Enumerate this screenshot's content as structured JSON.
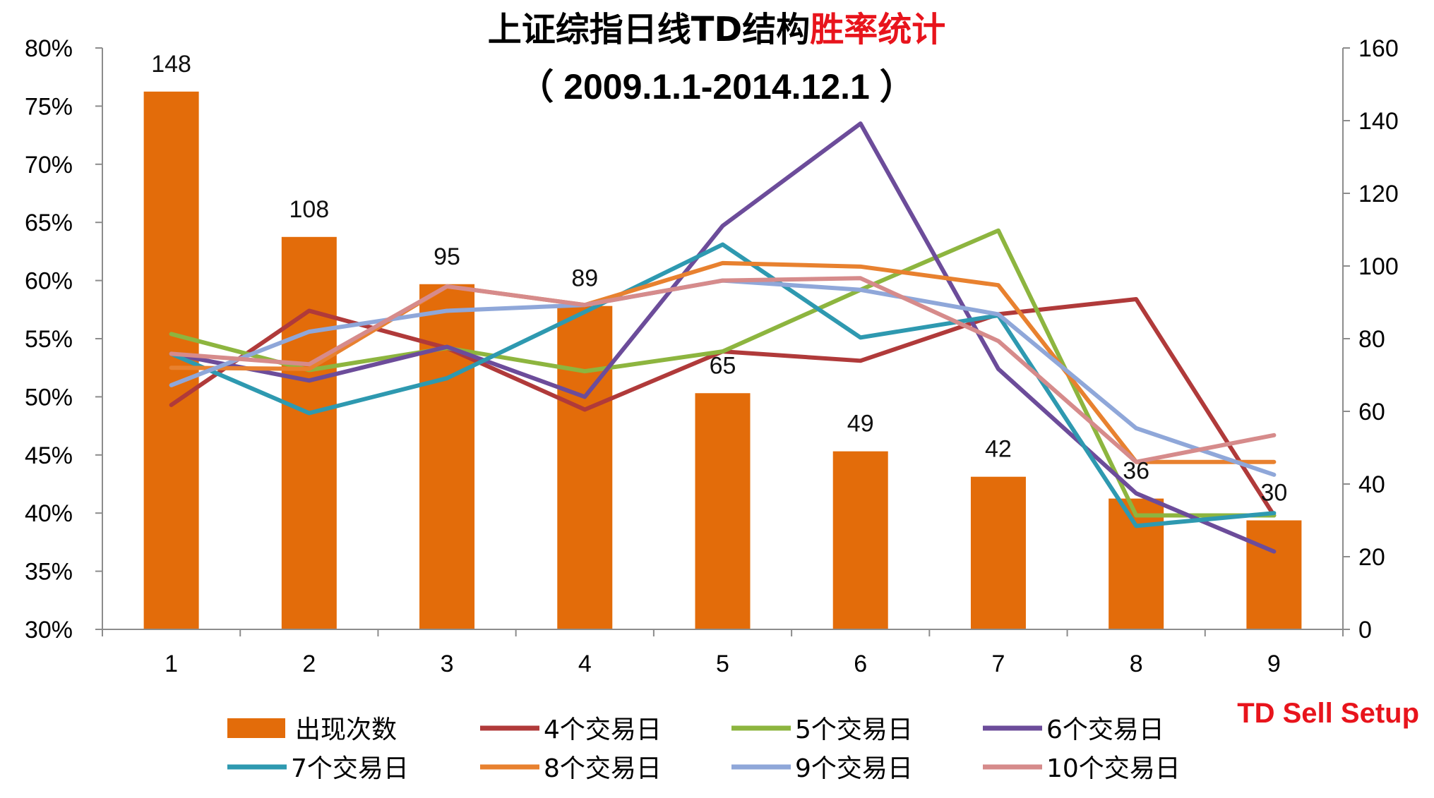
{
  "chart_data": {
    "type": "bar+line",
    "title_parts": [
      "上证综指日线TD结构",
      "胜率统计"
    ],
    "subtitle": "（ 2009.1.1-2014.12.1 ）",
    "x_caption": "TD Sell Setup",
    "categories": [
      "1",
      "2",
      "3",
      "4",
      "5",
      "6",
      "7",
      "8",
      "9"
    ],
    "left_axis": {
      "min": 30,
      "max": 80,
      "step": 5,
      "ticks": [
        "30%",
        "35%",
        "40%",
        "45%",
        "50%",
        "55%",
        "60%",
        "65%",
        "70%",
        "75%",
        "80%"
      ]
    },
    "right_axis": {
      "min": 0,
      "max": 160,
      "step": 20,
      "ticks": [
        "0",
        "20",
        "40",
        "60",
        "80",
        "100",
        "120",
        "140",
        "160"
      ]
    },
    "bars": {
      "name": "出现次数",
      "color": "#e36c0a",
      "values": [
        148,
        108,
        95,
        89,
        65,
        49,
        42,
        36,
        30
      ],
      "labels": [
        "148",
        "108",
        "95",
        "89",
        "65",
        "49",
        "42",
        "36",
        "30"
      ]
    },
    "series": [
      {
        "name": "4个交易日",
        "color": "#b03a3a",
        "values": [
          49.3,
          57.4,
          54.2,
          48.9,
          53.9,
          53.1,
          57.1,
          58.4,
          39.8
        ]
      },
      {
        "name": "5个交易日",
        "color": "#8db53f",
        "values": [
          55.4,
          52.3,
          54.2,
          52.2,
          53.9,
          59.2,
          64.3,
          39.8,
          39.8
        ]
      },
      {
        "name": "6个交易日",
        "color": "#6c4c9a",
        "values": [
          53.7,
          51.4,
          54.3,
          50.0,
          64.7,
          73.5,
          52.4,
          41.7,
          36.7
        ]
      },
      {
        "name": "7个交易日",
        "color": "#2e99b0",
        "values": [
          53.7,
          48.6,
          51.6,
          57.3,
          63.1,
          55.1,
          57.0,
          38.9,
          40.0
        ]
      },
      {
        "name": "8个交易日",
        "color": "#e8812f",
        "values": [
          52.5,
          52.4,
          59.5,
          57.9,
          61.5,
          61.2,
          59.6,
          44.4,
          44.4
        ]
      },
      {
        "name": "9个交易日",
        "color": "#8fa7d9",
        "values": [
          51.0,
          55.6,
          57.4,
          57.9,
          60.0,
          59.2,
          57.1,
          47.3,
          43.3
        ]
      },
      {
        "name": "10个交易日",
        "color": "#d68b8b",
        "values": [
          53.7,
          52.8,
          59.5,
          57.9,
          60.0,
          60.2,
          54.8,
          44.4,
          46.7
        ]
      }
    ],
    "legend_position": "bottom"
  }
}
